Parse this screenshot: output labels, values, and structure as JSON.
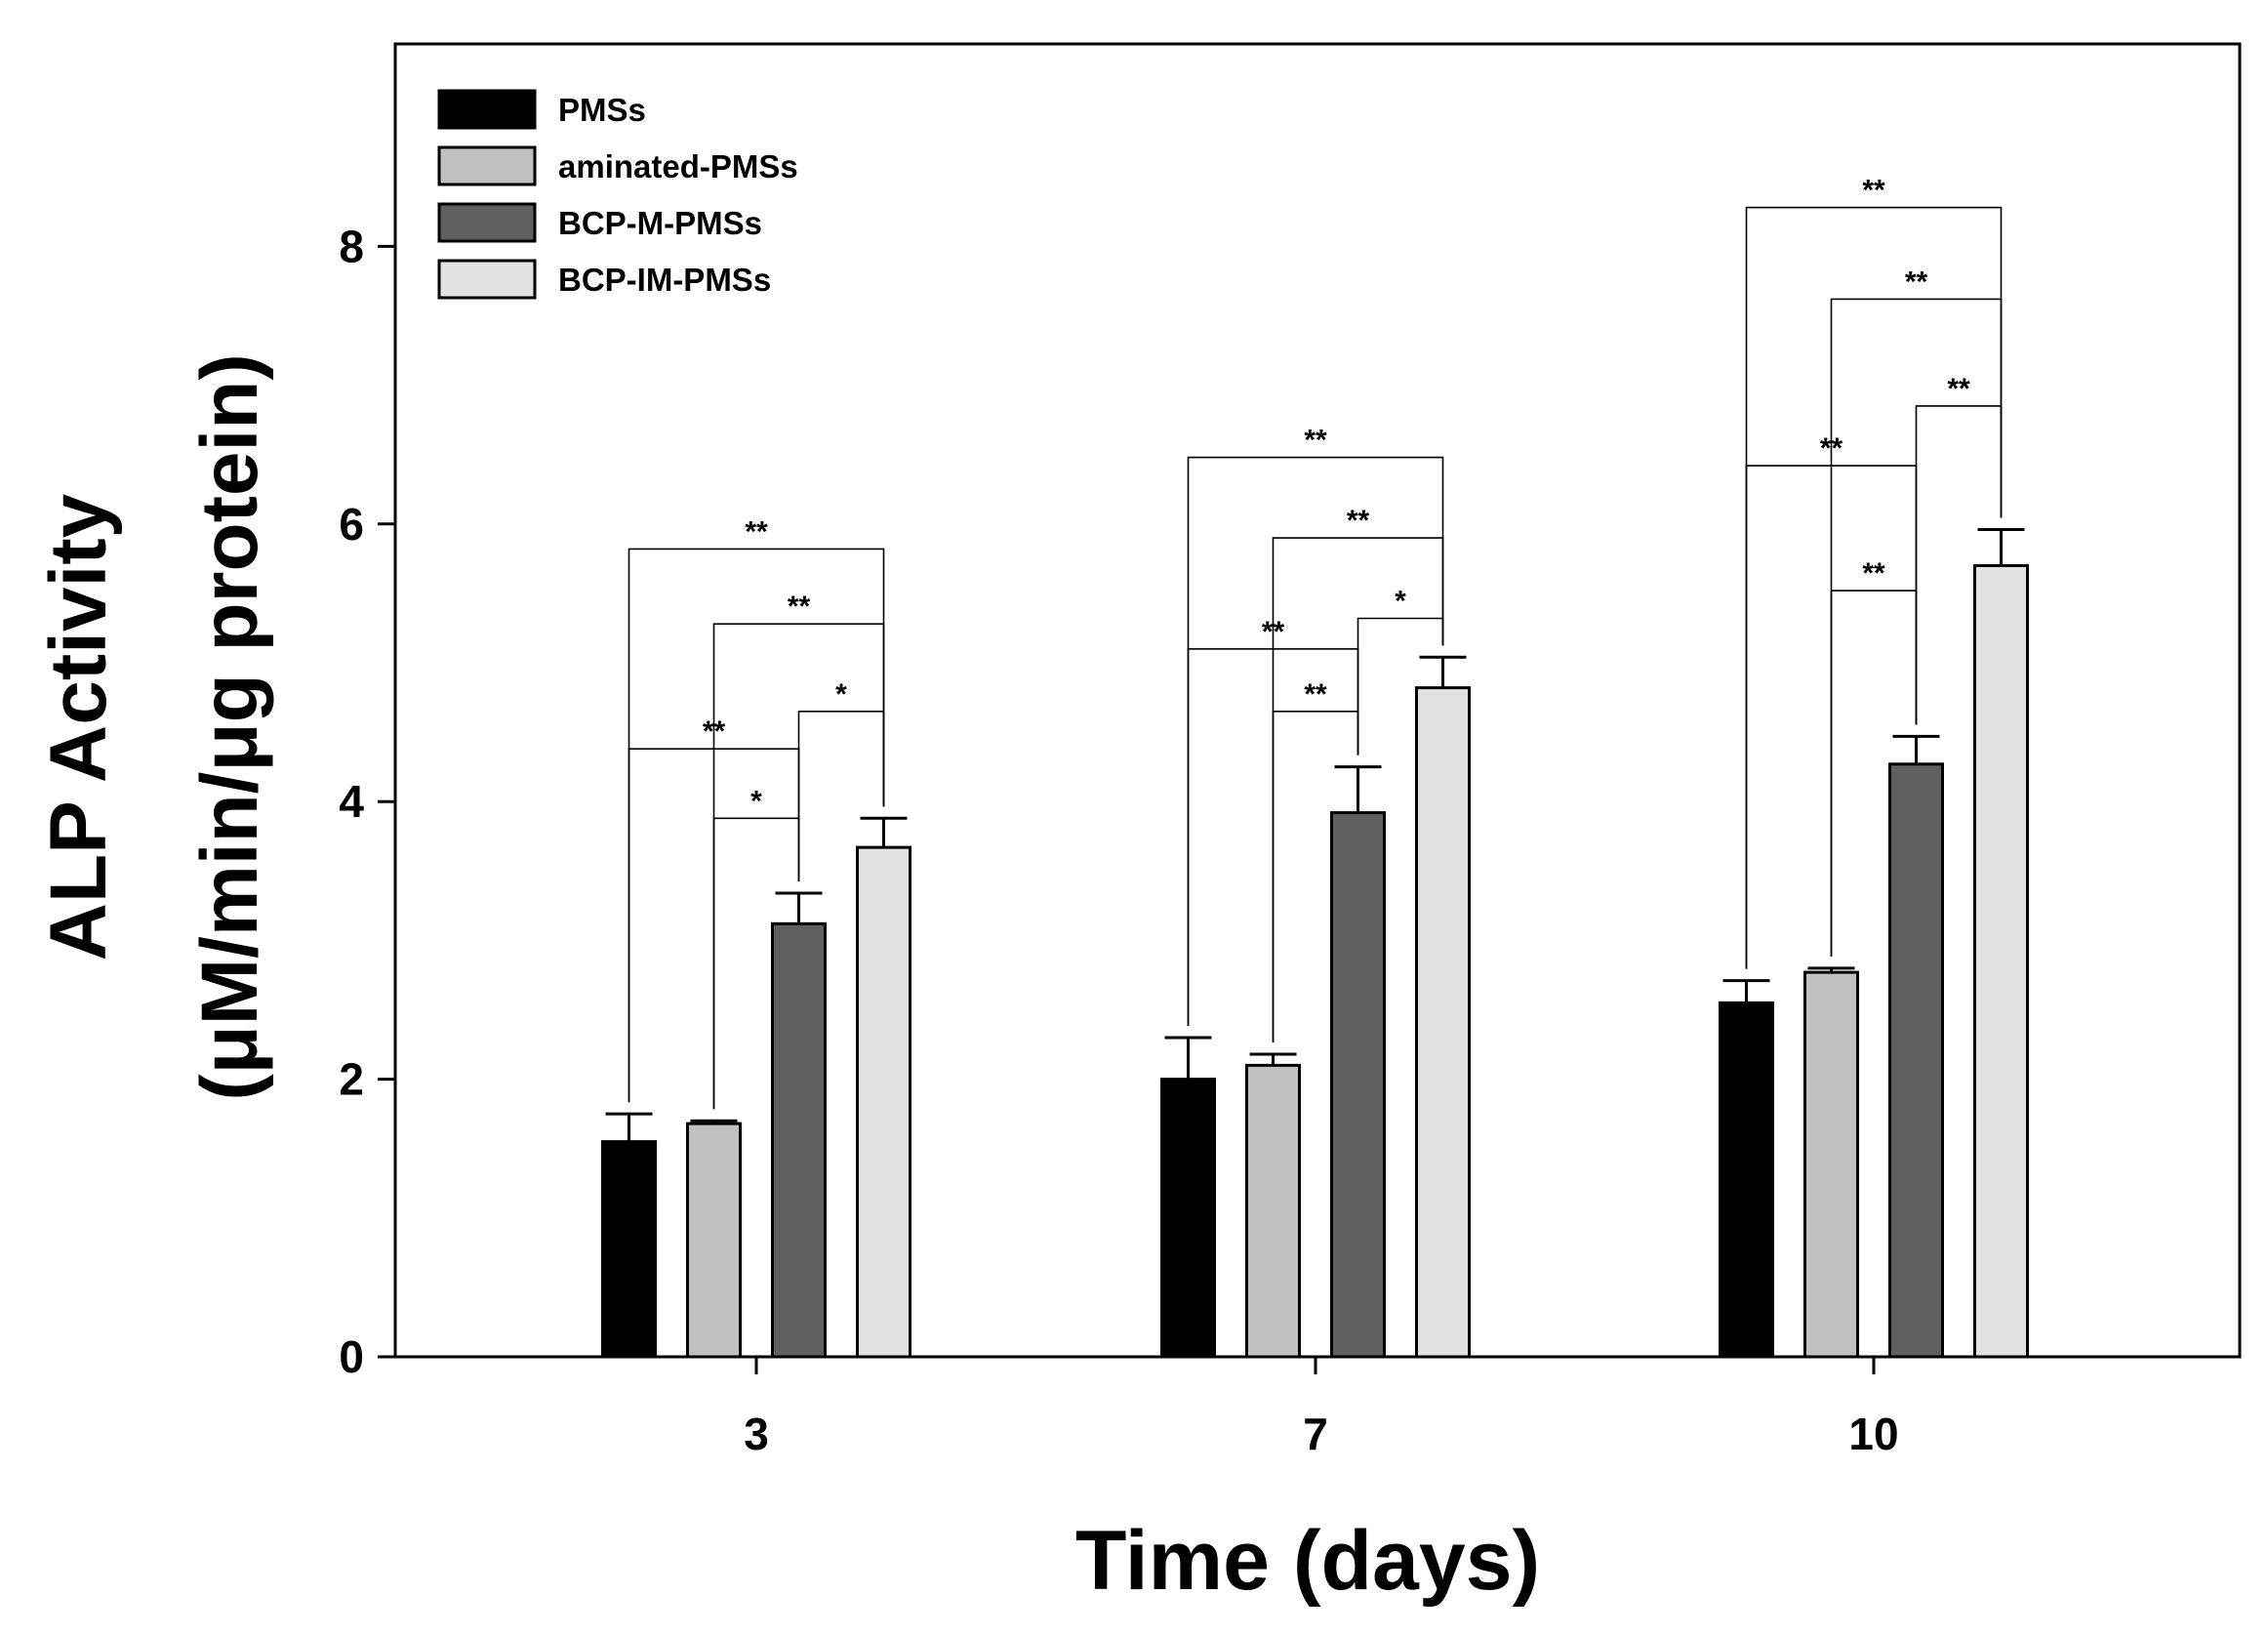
{
  "chart_data": {
    "type": "bar",
    "title": "",
    "xlabel": "Time (days)",
    "ylabel_line1": "ALP Activity",
    "ylabel_line2": "(μM/min/μg protein)",
    "ylim": [
      0,
      9.5
    ],
    "yticks": [
      0,
      2,
      4,
      6,
      8
    ],
    "categories": [
      "3",
      "7",
      "10"
    ],
    "legend_position": "top-left",
    "series": [
      {
        "name": "PMSs",
        "color": "#000000",
        "values": [
          1.55,
          2.0,
          2.55
        ],
        "errors": [
          0.2,
          0.3,
          0.16
        ]
      },
      {
        "name": "aminated-PMSs",
        "color": "#c0c0c0",
        "values": [
          1.68,
          2.1,
          2.77
        ],
        "errors": [
          0.02,
          0.08,
          0.03
        ]
      },
      {
        "name": "BCP-M-PMSs",
        "color": "#606060",
        "values": [
          3.12,
          3.92,
          4.27
        ],
        "errors": [
          0.22,
          0.33,
          0.2
        ]
      },
      {
        "name": "BCP-IM-PMSs",
        "color": "#e2e2e2",
        "values": [
          3.67,
          4.82,
          5.7
        ],
        "errors": [
          0.21,
          0.22,
          0.26
        ]
      }
    ],
    "significance": [
      {
        "group": 0,
        "from": 0,
        "to": 3,
        "label": "**",
        "y": 5.82
      },
      {
        "group": 0,
        "from": 1,
        "to": 3,
        "label": "**",
        "y": 5.28
      },
      {
        "group": 0,
        "from": 2,
        "to": 3,
        "label": "*",
        "y": 4.65
      },
      {
        "group": 0,
        "from": 0,
        "to": 2,
        "label": "**",
        "y": 4.38
      },
      {
        "group": 0,
        "from": 1,
        "to": 2,
        "label": "*",
        "y": 3.88
      },
      {
        "group": 1,
        "from": 0,
        "to": 3,
        "label": "**",
        "y": 6.48
      },
      {
        "group": 1,
        "from": 1,
        "to": 3,
        "label": "**",
        "y": 5.9
      },
      {
        "group": 1,
        "from": 2,
        "to": 3,
        "label": "*",
        "y": 5.32
      },
      {
        "group": 1,
        "from": 0,
        "to": 2,
        "label": "**",
        "y": 5.1
      },
      {
        "group": 1,
        "from": 1,
        "to": 2,
        "label": "**",
        "y": 4.65
      },
      {
        "group": 2,
        "from": 0,
        "to": 3,
        "label": "**",
        "y": 8.28
      },
      {
        "group": 2,
        "from": 1,
        "to": 3,
        "label": "**",
        "y": 7.62
      },
      {
        "group": 2,
        "from": 2,
        "to": 3,
        "label": "**",
        "y": 6.85
      },
      {
        "group": 2,
        "from": 0,
        "to": 2,
        "label": "**",
        "y": 6.42
      },
      {
        "group": 2,
        "from": 1,
        "to": 2,
        "label": "**",
        "y": 5.52
      }
    ]
  }
}
